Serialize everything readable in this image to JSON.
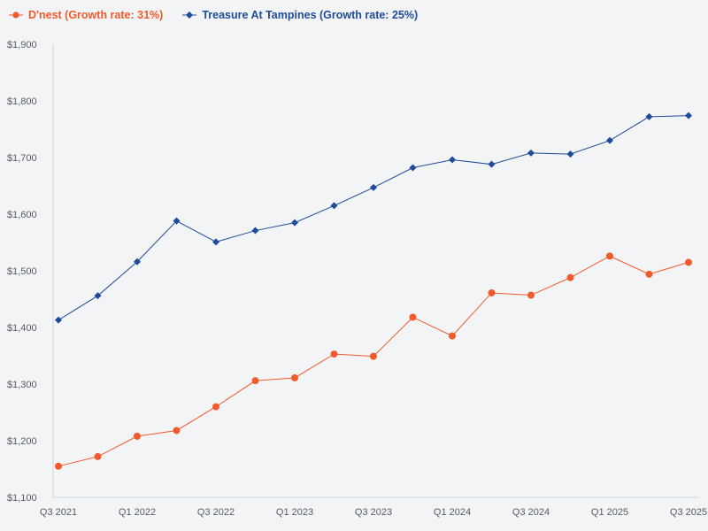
{
  "chart_data": {
    "type": "line",
    "title": "",
    "xlabel": "",
    "ylabel": "",
    "ylim": [
      1100,
      1900
    ],
    "yticks": [
      1100,
      1200,
      1300,
      1400,
      1500,
      1600,
      1700,
      1800,
      1900
    ],
    "ytick_labels": [
      "$1,100",
      "$1,200",
      "$1,300",
      "$1,400",
      "$1,500",
      "$1,600",
      "$1,700",
      "$1,800",
      "$1,900"
    ],
    "categories": [
      "Q3 2021",
      "Q4 2021",
      "Q1 2022",
      "Q2 2022",
      "Q3 2022",
      "Q4 2022",
      "Q1 2023",
      "Q2 2023",
      "Q3 2023",
      "Q4 2023",
      "Q1 2024",
      "Q2 2024",
      "Q3 2024",
      "Q4 2024",
      "Q1 2025",
      "Q2 2025",
      "Q3 2025"
    ],
    "xtick_labels": [
      {
        "index": 0,
        "label": "Q3 2021"
      },
      {
        "index": 2,
        "label": "Q1 2022"
      },
      {
        "index": 4,
        "label": "Q3 2022"
      },
      {
        "index": 6,
        "label": "Q1 2023"
      },
      {
        "index": 8,
        "label": "Q3 2023"
      },
      {
        "index": 10,
        "label": "Q1 2024"
      },
      {
        "index": 12,
        "label": "Q3 2024"
      },
      {
        "index": 14,
        "label": "Q1 2025"
      },
      {
        "index": 16,
        "label": "Q3 2025"
      }
    ],
    "legend_position": "top-left",
    "grid": false,
    "series": [
      {
        "name": "D'nest (Growth rate: 31%)",
        "color": "#f15a2b",
        "marker": "circle",
        "values": [
          1155,
          1172,
          1208,
          1218,
          1260,
          1306,
          1311,
          1353,
          1349,
          1418,
          1385,
          1461,
          1457,
          1488,
          1526,
          1494,
          1515
        ]
      },
      {
        "name": "Treasure At Tampines (Growth rate: 25%)",
        "color": "#1f4b99",
        "marker": "diamond",
        "values": [
          1413,
          1456,
          1516,
          1588,
          1551,
          1571,
          1585,
          1615,
          1647,
          1682,
          1696,
          1688,
          1708,
          1706,
          1730,
          1772,
          1774
        ]
      }
    ]
  }
}
